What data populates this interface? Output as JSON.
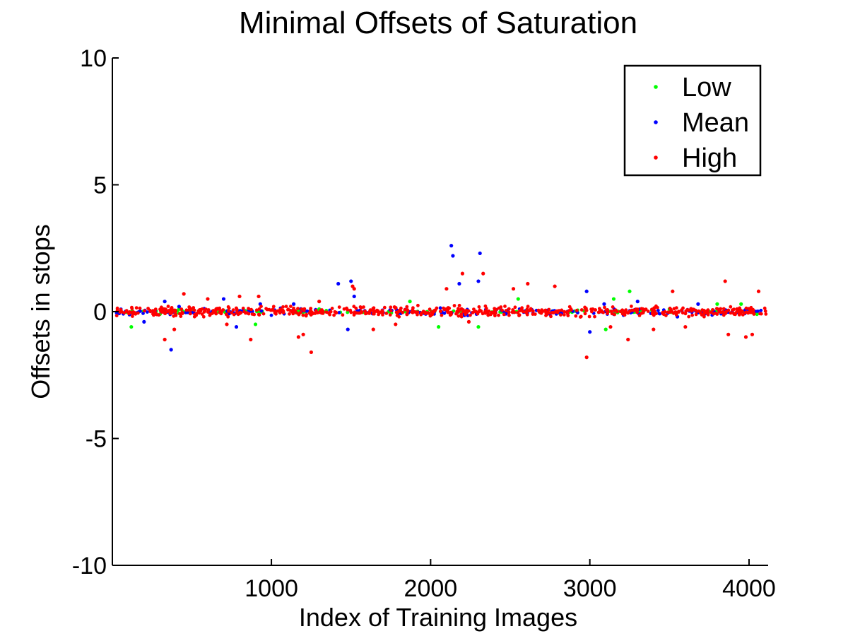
{
  "chart_data": {
    "type": "scatter",
    "title": "Minimal Offsets of Saturation",
    "xlabel": "Index of Training Images",
    "ylabel": "Offsets in stops",
    "xlim": [
      1,
      4120
    ],
    "ylim": [
      -10,
      10
    ],
    "xticks": [
      1000,
      2000,
      3000,
      4000
    ],
    "yticks": [
      -10,
      -5,
      0,
      5,
      10
    ],
    "grid": false,
    "legend_position": "top-right",
    "series": [
      {
        "name": "Low",
        "color": "#00ff00",
        "points": [
          [
            120,
            -0.6
          ],
          [
            300,
            -0.1
          ],
          [
            420,
            0.1
          ],
          [
            700,
            0.05
          ],
          [
            900,
            -0.5
          ],
          [
            1300,
            0.1
          ],
          [
            1870,
            0.4
          ],
          [
            2050,
            -0.6
          ],
          [
            2300,
            -0.6
          ],
          [
            2550,
            0.5
          ],
          [
            3100,
            -0.7
          ],
          [
            3150,
            0.5
          ],
          [
            3250,
            0.8
          ],
          [
            3500,
            0.1
          ],
          [
            3800,
            0.3
          ],
          [
            3950,
            0.3
          ],
          [
            4050,
            -0.1
          ]
        ],
        "band": {
          "from": 20,
          "to": 4120,
          "spread": 0.08,
          "count": 120
        }
      },
      {
        "name": "Mean",
        "color": "#0000ff",
        "points": [
          [
            200,
            -0.4
          ],
          [
            330,
            0.4
          ],
          [
            370,
            -1.5
          ],
          [
            420,
            0.2
          ],
          [
            700,
            0.5
          ],
          [
            780,
            -0.6
          ],
          [
            930,
            0.3
          ],
          [
            1140,
            0.3
          ],
          [
            1420,
            1.1
          ],
          [
            1480,
            -0.7
          ],
          [
            1500,
            1.2
          ],
          [
            1520,
            0.6
          ],
          [
            2130,
            2.6
          ],
          [
            2140,
            2.2
          ],
          [
            2180,
            1.1
          ],
          [
            2300,
            1.2
          ],
          [
            2310,
            2.3
          ],
          [
            2980,
            0.8
          ],
          [
            3000,
            -0.8
          ],
          [
            3090,
            0.3
          ],
          [
            3300,
            0.4
          ],
          [
            3550,
            -0.2
          ],
          [
            3680,
            0.3
          ],
          [
            4000,
            0.1
          ]
        ],
        "band": {
          "from": 20,
          "to": 4120,
          "spread": 0.18,
          "count": 220
        }
      },
      {
        "name": "High",
        "color": "#ff0000",
        "points": [
          [
            330,
            -1.1
          ],
          [
            390,
            -0.7
          ],
          [
            450,
            0.7
          ],
          [
            600,
            0.5
          ],
          [
            720,
            -0.5
          ],
          [
            800,
            0.6
          ],
          [
            870,
            -1.1
          ],
          [
            920,
            0.6
          ],
          [
            1170,
            -1.0
          ],
          [
            1200,
            -0.9
          ],
          [
            1250,
            -1.6
          ],
          [
            1300,
            0.4
          ],
          [
            1510,
            1.0
          ],
          [
            1520,
            0.9
          ],
          [
            1640,
            -0.7
          ],
          [
            1780,
            -0.5
          ],
          [
            2100,
            0.9
          ],
          [
            2200,
            1.5
          ],
          [
            2240,
            -0.4
          ],
          [
            2330,
            1.5
          ],
          [
            2520,
            0.9
          ],
          [
            2610,
            1.1
          ],
          [
            2780,
            1.0
          ],
          [
            2980,
            -1.8
          ],
          [
            3130,
            -0.6
          ],
          [
            3240,
            -1.1
          ],
          [
            3400,
            -0.7
          ],
          [
            3520,
            0.8
          ],
          [
            3600,
            -0.6
          ],
          [
            3850,
            1.2
          ],
          [
            3870,
            -0.9
          ],
          [
            3980,
            -1.0
          ],
          [
            4020,
            -0.9
          ],
          [
            4060,
            0.8
          ]
        ],
        "band": {
          "from": 20,
          "to": 4120,
          "spread": 0.28,
          "count": 650
        }
      }
    ]
  }
}
